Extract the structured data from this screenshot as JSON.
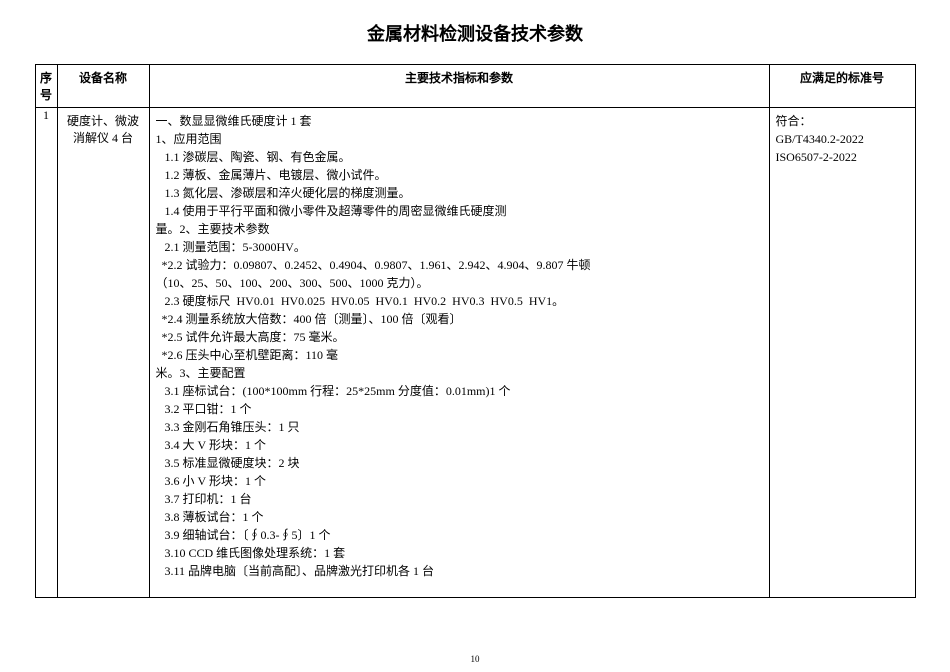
{
  "title": "金属材料检测设备技术参数",
  "headers": {
    "seq": "序号",
    "name": "设备名称",
    "spec": "主要技术指标和参数",
    "std": "应满足的标准号"
  },
  "row": {
    "seq": "1",
    "name": "硬度计、微波消解仪 4 台",
    "spec_lines": [
      "一、数显显微维氏硬度计 1 套",
      "1、应用范围",
      "   1.1 渗碳层、陶瓷、钢、有色金属。",
      "   1.2 薄板、金属薄片、电镀层、微小试件。",
      "   1.3 氮化层、渗碳层和淬火硬化层的梯度测量。",
      "   1.4 使用于平行平面和微小零件及超薄零件的周密显微维氏硬度测",
      "量。2、主要技术参数",
      "   2.1 测量范围：5-3000HV。",
      "  *2.2 试验力：0.09807、0.2452、0.4904、0.9807、1.961、2.942、4.904、9.807 牛顿",
      "（10、25、50、100、200、300、500、1000 克力）。",
      "   2.3 硬度标尺  HV0.01  HV0.025  HV0.05  HV0.1  HV0.2  HV0.3  HV0.5  HV1。",
      "  *2.4 测量系统放大倍数：400 倍〔测量〕、100 倍〔观看〕",
      "  *2.5 试件允许最大高度：75 毫米。",
      "  *2.6 压头中心至机壁距离：110 毫",
      "米。3、主要配置",
      "   3.1 座标试台：(100*100mm 行程：25*25mm 分度值：0.01mm)1 个",
      "   3.2 平口钳：1 个",
      "   3.3 金刚石角锥压头：1 只",
      "   3.4 大 V 形块：1 个",
      "   3.5 标准显微硬度块：2 块",
      "   3.6 小 V 形块：1 个",
      "   3.7 打印机：1 台",
      "   3.8 薄板试台：1 个",
      "   3.9 细轴试台：〔∮0.3-∮5〕1 个",
      "   3.10 CCD 维氏图像处理系统：1 套",
      "   3.11 品牌电脑〔当前高配〕、品牌激光打印机各 1 台"
    ],
    "std_lines": [
      "符合：",
      "GB/T4340.2-2022",
      "ISO6507-2-2022"
    ]
  },
  "page_number": "10"
}
